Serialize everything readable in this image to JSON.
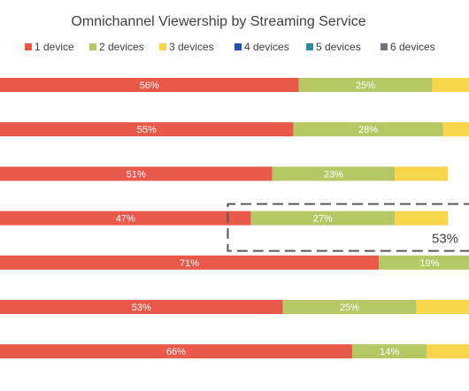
{
  "chart_data": {
    "type": "bar",
    "orientation": "horizontal",
    "stacked": true,
    "title": "Omnichannel Viewership by Streaming Service",
    "xlabel": "",
    "ylabel": "",
    "xlim": [
      0,
      100
    ],
    "legend_position": "top",
    "grid": false,
    "categories": [
      "",
      "",
      "",
      "",
      "",
      "",
      ""
    ],
    "series": [
      {
        "name": "1 device",
        "color": "#e8594a",
        "values": [
          56,
          55,
          51,
          47,
          71,
          53,
          66
        ]
      },
      {
        "name": "2 devices",
        "color": "#b5c863",
        "values": [
          25,
          28,
          23,
          27,
          19,
          25,
          14
        ]
      },
      {
        "name": "3 devices",
        "color": "#f6d54a",
        "values": [
          null,
          null,
          null,
          null,
          null,
          null,
          null
        ]
      },
      {
        "name": "4 devices",
        "color": "#2050b8",
        "values": [
          null,
          null,
          null,
          null,
          null,
          null,
          null
        ]
      },
      {
        "name": "5 devices",
        "color": "#2b8c9c",
        "values": [
          null,
          null,
          null,
          null,
          null,
          null,
          null
        ]
      },
      {
        "name": "6 devices",
        "color": "#6f7480",
        "values": [
          null,
          null,
          null,
          null,
          null,
          null,
          null
        ]
      }
    ],
    "data_labels": [
      [
        "56%",
        "25%"
      ],
      [
        "55%",
        "28%"
      ],
      [
        "51%",
        "23%"
      ],
      [
        "47%",
        "27%"
      ],
      [
        "71%",
        "19%"
      ],
      [
        "53%",
        "25%"
      ],
      [
        "66%",
        "14%"
      ]
    ],
    "annotation": {
      "text": "53%",
      "row_index": 3
    }
  }
}
